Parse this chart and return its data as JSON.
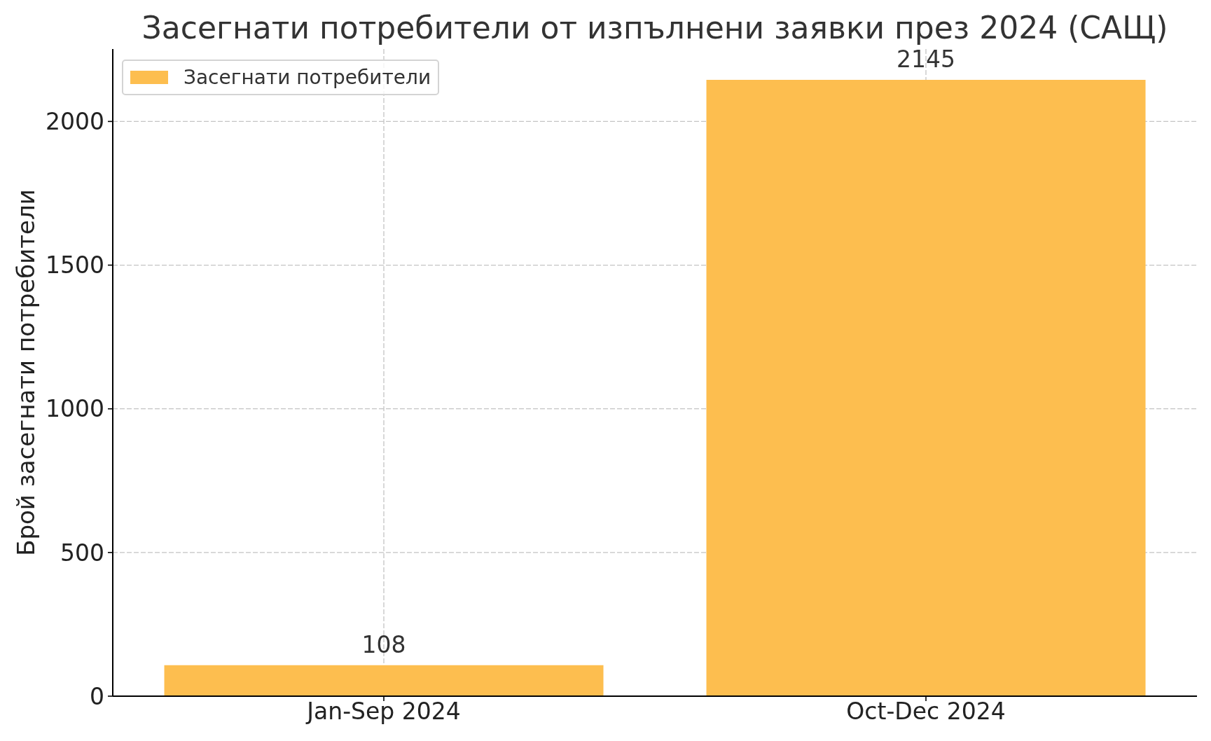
{
  "chart_data": {
    "type": "bar",
    "title": "Засегнати потребители от изпълнени заявки през 2024 (САЩ)",
    "ylabel": "Брой засегнати потребители",
    "categories": [
      "Jan-Sep 2024",
      "Oct-Dec 2024"
    ],
    "series": [
      {
        "name": "Засегнати потребители",
        "color": "#fdbe4f",
        "values": [
          108,
          2145
        ]
      }
    ],
    "ylim": [
      0,
      2252
    ],
    "yticks": [
      0,
      500,
      1000,
      1500,
      2000
    ],
    "grid": true,
    "legend": "top left",
    "data_labels": true
  }
}
